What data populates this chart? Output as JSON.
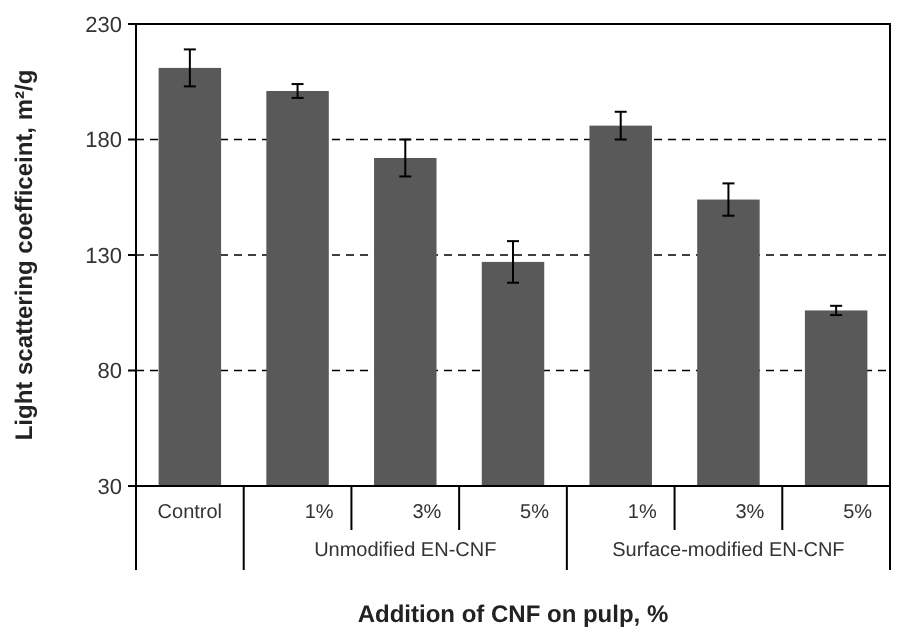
{
  "chart_data": {
    "type": "bar",
    "xlabel": "Addition of CNF on pulp, %",
    "ylabel": "Light scattering coefficeint, m²/g",
    "categories": [
      "Control",
      "1%",
      "3%",
      "5%",
      "1%",
      "3%",
      "5%"
    ],
    "values": [
      211,
      201,
      172,
      127,
      186,
      154,
      106
    ],
    "errors": [
      8,
      3,
      8,
      9,
      6,
      7,
      2
    ],
    "color": "#595959",
    "ylim": [
      30,
      230
    ],
    "yticks": [
      30,
      80,
      130,
      180,
      230
    ],
    "grid": "y",
    "annotations": [
      "Unmodified EN-CNF",
      "Surface-modified EN-CNF"
    ]
  }
}
